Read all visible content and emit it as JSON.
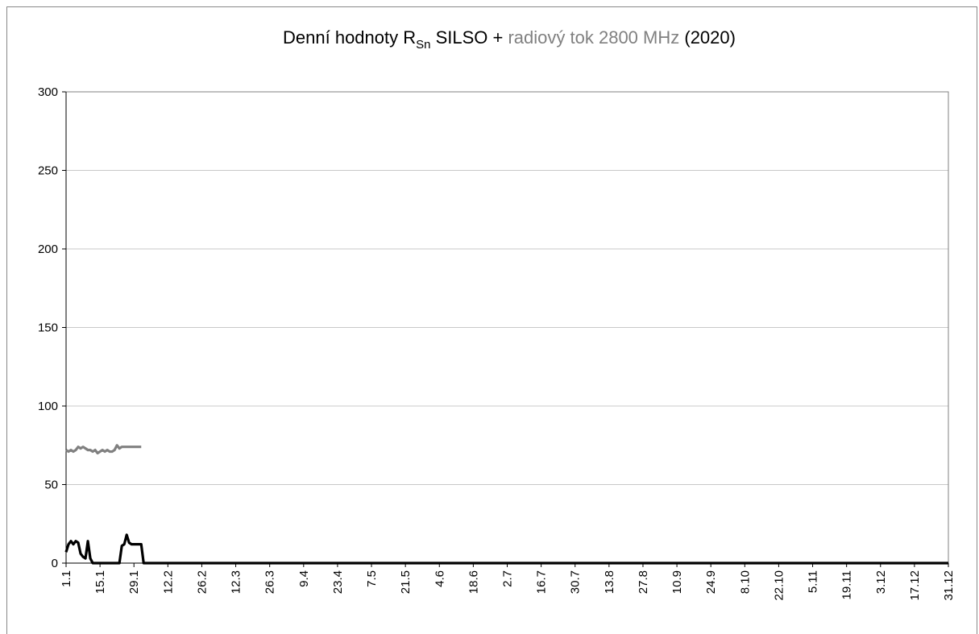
{
  "chart_data": {
    "type": "line",
    "title_parts": [
      "Denní hodnoty R",
      "Sn",
      " SILSO + ",
      "radiový tok 2800 MHz",
      " (2020)"
    ],
    "categories": [
      "1.1",
      null,
      null,
      null,
      null,
      null,
      null,
      null,
      null,
      null,
      null,
      null,
      null,
      null,
      "15.1",
      null,
      null,
      null,
      null,
      null,
      null,
      null,
      null,
      null,
      null,
      null,
      null,
      null,
      "29.1",
      null,
      null,
      null,
      null,
      null,
      null,
      null,
      null,
      null,
      null,
      null,
      null,
      null,
      "12.2",
      null,
      null,
      null,
      null,
      null,
      null,
      null,
      null,
      null,
      null,
      null,
      null,
      null,
      "26.2",
      null,
      null,
      null,
      null,
      null,
      null,
      null,
      null,
      null,
      null,
      null,
      null,
      null,
      "12.3",
      null,
      null,
      null,
      null,
      null,
      null,
      null,
      null,
      null,
      null,
      null,
      null,
      null,
      "26.3",
      null,
      null,
      null,
      null,
      null,
      null,
      null,
      null,
      null,
      null,
      null,
      null,
      null,
      "9.4",
      null,
      null,
      null,
      null,
      null,
      null,
      null,
      null,
      null,
      null,
      null,
      null,
      null,
      "23.4",
      null,
      null,
      null,
      null,
      null,
      null,
      null,
      null,
      null,
      null,
      null,
      null,
      null,
      "7.5",
      null,
      null,
      null,
      null,
      null,
      null,
      null,
      null,
      null,
      null,
      null,
      null,
      null,
      "21.5",
      null,
      null,
      null,
      null,
      null,
      null,
      null,
      null,
      null,
      null,
      null,
      null,
      null,
      "4.6",
      null,
      null,
      null,
      null,
      null,
      null,
      null,
      null,
      null,
      null,
      null,
      null,
      null,
      "18.6",
      null,
      null,
      null,
      null,
      null,
      null,
      null,
      null,
      null,
      null,
      null,
      null,
      null,
      "2.7",
      null,
      null,
      null,
      null,
      null,
      null,
      null,
      null,
      null,
      null,
      null,
      null,
      null,
      "16.7",
      null,
      null,
      null,
      null,
      null,
      null,
      null,
      null,
      null,
      null,
      null,
      null,
      null,
      "30.7",
      null,
      null,
      null,
      null,
      null,
      null,
      null,
      null,
      null,
      null,
      null,
      null,
      null,
      "13.8",
      null,
      null,
      null,
      null,
      null,
      null,
      null,
      null,
      null,
      null,
      null,
      null,
      null,
      "27.8",
      null,
      null,
      null,
      null,
      null,
      null,
      null,
      null,
      null,
      null,
      null,
      null,
      null,
      "10.9",
      null,
      null,
      null,
      null,
      null,
      null,
      null,
      null,
      null,
      null,
      null,
      null,
      null,
      "24.9",
      null,
      null,
      null,
      null,
      null,
      null,
      null,
      null,
      null,
      null,
      null,
      null,
      null,
      "8.10",
      null,
      null,
      null,
      null,
      null,
      null,
      null,
      null,
      null,
      null,
      null,
      null,
      null,
      "22.10",
      null,
      null,
      null,
      null,
      null,
      null,
      null,
      null,
      null,
      null,
      null,
      null,
      null,
      "5.11",
      null,
      null,
      null,
      null,
      null,
      null,
      null,
      null,
      null,
      null,
      null,
      null,
      null,
      "19.11",
      null,
      null,
      null,
      null,
      null,
      null,
      null,
      null,
      null,
      null,
      null,
      null,
      null,
      "3.12",
      null,
      null,
      null,
      null,
      null,
      null,
      null,
      null,
      null,
      null,
      null,
      null,
      null,
      "17.12",
      null,
      null,
      null,
      null,
      null,
      null,
      null,
      null,
      null,
      null,
      null,
      null,
      null,
      "31.12"
    ],
    "series": [
      {
        "color": "#808080",
        "values": [
          72,
          71,
          72,
          71,
          72,
          74,
          73,
          74,
          73,
          72,
          72,
          71,
          72,
          70,
          71,
          72,
          71,
          72,
          71,
          71,
          72,
          75,
          73,
          74,
          74,
          74,
          74,
          74,
          74,
          74,
          74,
          74,
          null,
          null,
          null,
          null,
          null,
          null,
          null,
          null,
          null,
          null,
          null,
          null,
          null,
          null,
          null,
          null,
          null,
          null,
          null,
          null,
          null,
          null,
          null,
          null,
          null,
          null,
          null,
          null,
          null,
          null,
          null,
          null,
          null,
          null,
          null,
          null,
          null,
          null,
          null,
          null,
          null,
          null,
          null,
          null,
          null,
          null,
          null,
          null,
          null,
          null,
          null,
          null,
          null,
          null,
          null,
          null,
          null,
          null,
          null,
          null,
          null,
          null,
          null,
          null,
          null,
          null,
          null,
          null,
          null,
          null,
          null,
          null,
          null,
          null,
          null,
          null,
          null,
          null,
          null,
          null,
          null,
          null,
          null,
          null,
          null,
          null,
          null,
          null,
          null,
          null,
          null,
          null,
          null,
          null,
          null,
          null,
          null,
          null,
          null,
          null,
          null,
          null,
          null,
          null,
          null,
          null,
          null,
          null,
          null,
          null,
          null,
          null,
          null,
          null,
          null,
          null,
          null,
          null,
          null,
          null,
          null,
          null,
          null,
          null,
          null,
          null,
          null,
          null,
          null,
          null,
          null,
          null,
          null,
          null,
          null,
          null,
          null,
          null,
          null,
          null,
          null,
          null,
          null,
          null,
          null,
          null,
          null,
          null,
          null,
          null,
          null,
          null,
          null,
          null,
          null,
          null,
          null,
          null,
          null,
          null,
          null,
          null,
          null,
          null,
          null,
          null,
          null,
          null,
          null,
          null,
          null,
          null,
          null,
          null,
          null,
          null,
          null,
          null,
          null,
          null,
          null,
          null,
          null,
          null,
          null,
          null,
          null,
          null,
          null,
          null,
          null,
          null,
          null,
          null,
          null,
          null,
          null,
          null,
          null,
          null,
          null,
          null,
          null,
          null,
          null,
          null,
          null,
          null,
          null,
          null,
          null,
          null,
          null,
          null,
          null,
          null,
          null,
          null,
          null,
          null,
          null,
          null,
          null,
          null,
          null,
          null,
          null,
          null,
          null,
          null,
          null,
          null,
          null,
          null,
          null,
          null,
          null,
          null,
          null,
          null,
          null,
          null,
          null,
          null,
          null,
          null,
          null,
          null,
          null,
          null,
          null,
          null,
          null,
          null,
          null,
          null,
          null,
          null,
          null,
          null,
          null,
          null,
          null,
          null,
          null,
          null,
          null,
          null,
          null,
          null,
          null,
          null,
          null,
          null,
          null,
          null,
          null,
          null,
          null,
          null,
          null,
          null,
          null,
          null,
          null,
          null,
          null,
          null,
          null,
          null,
          null,
          null,
          null,
          null,
          null,
          null,
          null,
          null,
          null,
          null,
          null,
          null,
          null,
          null,
          null,
          null,
          null,
          null,
          null,
          null,
          null,
          null,
          null,
          null,
          null,
          null,
          null,
          null,
          null,
          null,
          null,
          null,
          null,
          null,
          null,
          null,
          null,
          null,
          null,
          null,
          null,
          null,
          null
        ]
      },
      {
        "color": "#000000",
        "values": [
          7,
          12,
          14,
          12,
          14,
          13,
          6,
          4,
          3,
          14,
          3,
          0,
          0,
          0,
          0,
          0,
          0,
          0,
          0,
          0,
          0,
          0,
          0,
          11,
          12,
          18,
          13,
          12,
          12,
          12,
          12,
          12,
          0,
          0,
          0,
          0,
          0,
          0,
          0,
          0,
          0,
          0,
          0,
          0,
          0,
          0,
          0,
          0,
          0,
          0,
          0,
          0,
          0,
          0,
          0,
          0,
          0,
          0,
          0,
          0,
          0,
          0,
          0,
          0,
          0,
          0,
          0,
          0,
          0,
          0,
          0,
          0,
          0,
          0,
          0,
          0,
          0,
          0,
          0,
          0,
          0,
          0,
          0,
          0,
          0,
          0,
          0,
          0,
          0,
          0,
          0,
          0,
          0,
          0,
          0,
          0,
          0,
          0,
          0,
          0,
          0,
          0,
          0,
          0,
          0,
          0,
          0,
          0,
          0,
          0,
          0,
          0,
          0,
          0,
          0,
          0,
          0,
          0,
          0,
          0,
          0,
          0,
          0,
          0,
          0,
          0,
          0,
          0,
          0,
          0,
          0,
          0,
          0,
          0,
          0,
          0,
          0,
          0,
          0,
          0,
          0,
          0,
          0,
          0,
          0,
          0,
          0,
          0,
          0,
          0,
          0,
          0,
          0,
          0,
          0,
          0,
          0,
          0,
          0,
          0,
          0,
          0,
          0,
          0,
          0,
          0,
          0,
          0,
          0,
          0,
          0,
          0,
          0,
          0,
          0,
          0,
          0,
          0,
          0,
          0,
          0,
          0,
          0,
          0,
          0,
          0,
          0,
          0,
          0,
          0,
          0,
          0,
          0,
          0,
          0,
          0,
          0,
          0,
          0,
          0,
          0,
          0,
          0,
          0,
          0,
          0,
          0,
          0,
          0,
          0,
          0,
          0,
          0,
          0,
          0,
          0,
          0,
          0,
          0,
          0,
          0,
          0,
          0,
          0,
          0,
          0,
          0,
          0,
          0,
          0,
          0,
          0,
          0,
          0,
          0,
          0,
          0,
          0,
          0,
          0,
          0,
          0,
          0,
          0,
          0,
          0,
          0,
          0,
          0,
          0,
          0,
          0,
          0,
          0,
          0,
          0,
          0,
          0,
          0,
          0,
          0,
          0,
          0,
          0,
          0,
          0,
          0,
          0,
          0,
          0,
          0,
          0,
          0,
          0,
          0,
          0,
          0,
          0,
          0,
          0,
          0,
          0,
          0,
          0,
          0,
          0,
          0,
          0,
          0,
          0,
          0,
          0,
          0,
          0,
          0,
          0,
          0,
          0,
          0,
          0,
          0,
          0,
          0,
          0,
          0,
          0,
          0,
          0,
          0,
          0,
          0,
          0,
          0,
          0,
          0,
          0,
          0,
          0,
          0,
          0,
          0,
          0,
          0,
          0,
          0,
          0,
          0,
          0,
          0,
          0,
          0,
          0,
          0,
          0,
          0,
          0,
          0,
          0,
          0,
          0,
          0,
          0,
          0,
          0,
          0,
          0,
          0,
          0,
          0,
          0,
          0,
          0,
          0,
          0,
          0,
          0,
          0,
          0,
          0,
          0,
          0,
          0,
          0,
          0,
          0
        ]
      }
    ],
    "ylim": [
      0,
      300
    ],
    "yticks": [
      0,
      50,
      100,
      150,
      200,
      250,
      300
    ],
    "grid": true
  }
}
